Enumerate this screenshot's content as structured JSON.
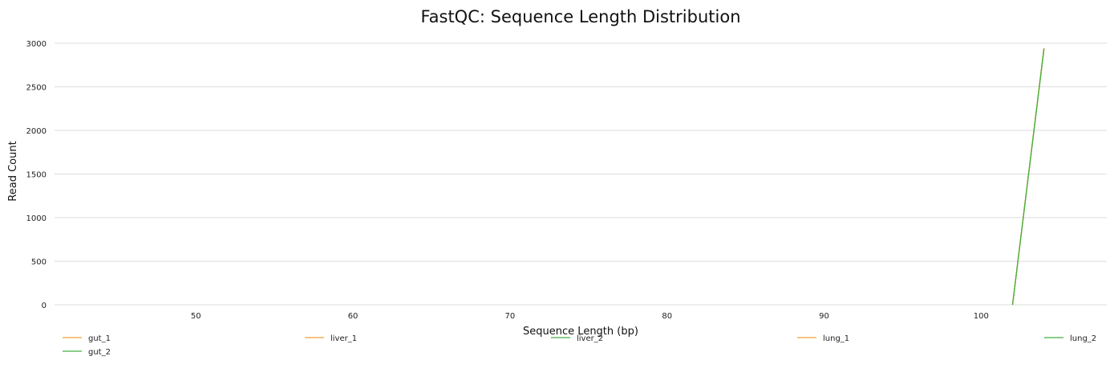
{
  "chart_data": {
    "type": "line",
    "title": "FastQC: Sequence Length Distribution",
    "xlabel": "Sequence Length (bp)",
    "ylabel": "Read Count",
    "xlim": [
      41,
      108
    ],
    "ylim": [
      0,
      3000
    ],
    "x_ticks": [
      50,
      60,
      70,
      80,
      90,
      100
    ],
    "y_ticks": [
      0,
      500,
      1000,
      1500,
      2000,
      2500,
      3000
    ],
    "grid": "horizontal",
    "legend_position": "bottom",
    "series": [
      {
        "name": "gut_1",
        "color": "#f0a030",
        "x": [
          102,
          104
        ],
        "y": [
          0,
          2940
        ]
      },
      {
        "name": "gut_2",
        "color": "#40b040",
        "x": [
          102,
          104
        ],
        "y": [
          0,
          2930
        ]
      },
      {
        "name": "liver_1",
        "color": "#f0a030",
        "x": [
          102,
          104
        ],
        "y": [
          0,
          2945
        ]
      },
      {
        "name": "liver_2",
        "color": "#40b040",
        "x": [
          102,
          104
        ],
        "y": [
          0,
          2935
        ]
      },
      {
        "name": "lung_1",
        "color": "#f0a030",
        "x": [
          102,
          104
        ],
        "y": [
          0,
          2942
        ]
      },
      {
        "name": "lung_2",
        "color": "#40b040",
        "x": [
          102,
          104
        ],
        "y": [
          0,
          2932
        ]
      }
    ]
  }
}
